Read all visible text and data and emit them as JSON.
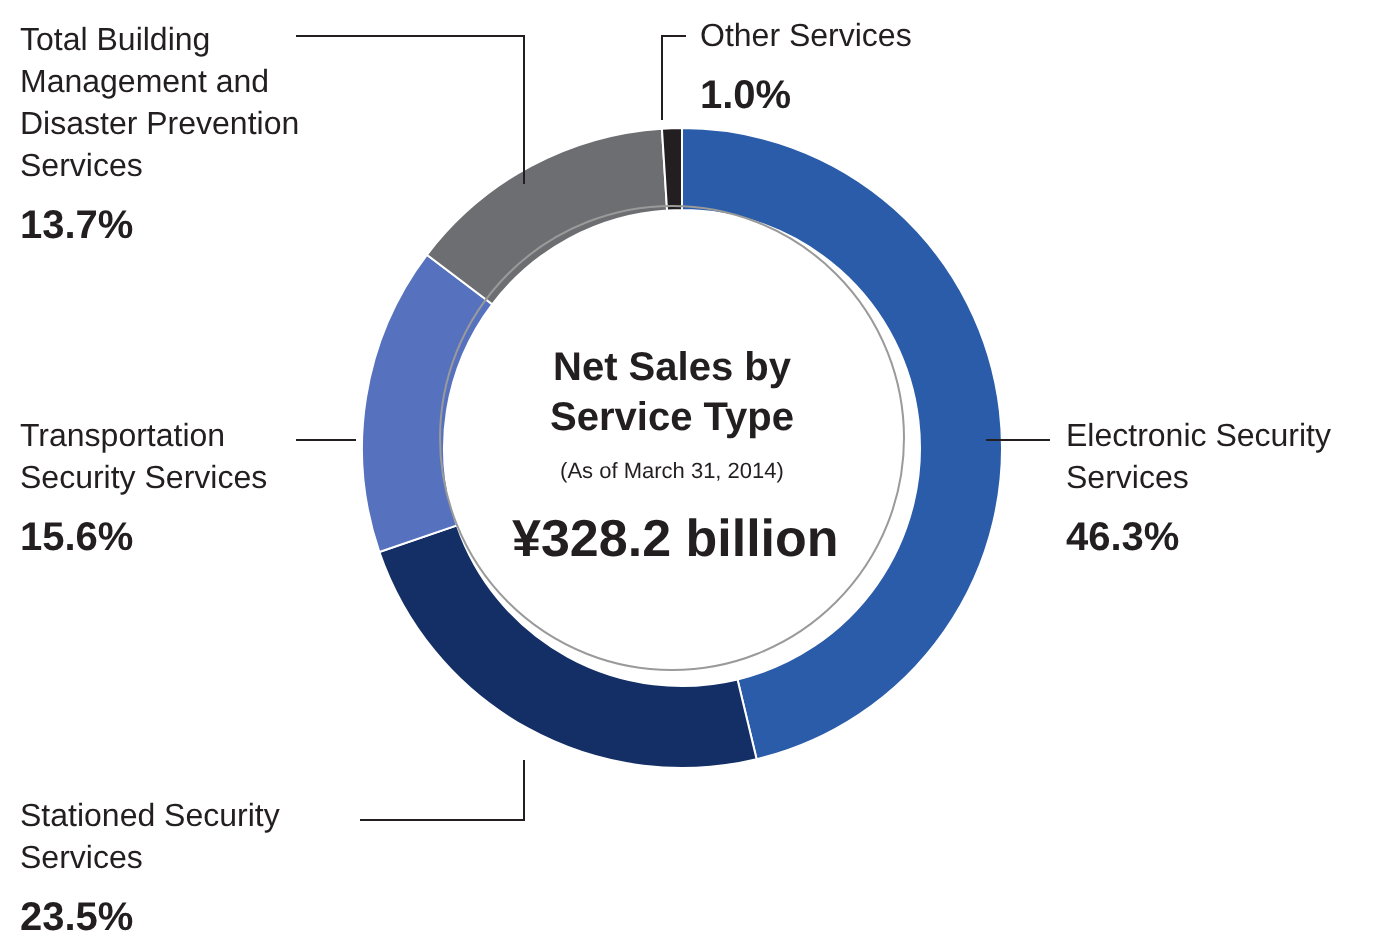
{
  "chart_data": {
    "type": "donut",
    "title": "Net Sales by Service Type",
    "subtitle": "(As of March 31, 2014)",
    "categories": [
      "Electronic Security Services",
      "Stationed Security Services",
      "Transportation Security Services",
      "Total Building Management and Disaster Prevention Services",
      "Other Services"
    ],
    "values": [
      46.3,
      23.5,
      15.6,
      13.7,
      1.0
    ],
    "colors": [
      "#2a5caa",
      "#142f66",
      "#5671be",
      "#6d6e71",
      "#231f20"
    ],
    "value_labels": [
      "46.3%",
      "23.5%",
      "15.6%",
      "13.7%",
      "1.0%"
    ],
    "annotations": [
      "¥328.2 billion"
    ]
  }
}
